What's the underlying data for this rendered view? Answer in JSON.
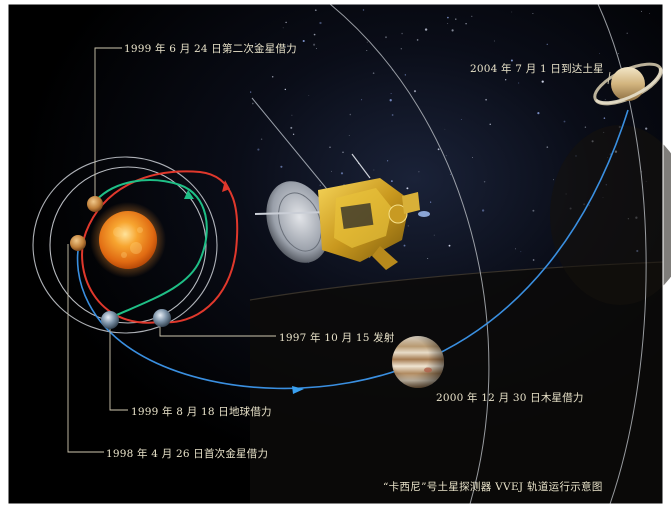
{
  "labels": {
    "venus_flyby_2": "1999 年 6 月 24 日第二次金星借力",
    "saturn_arrival": "2004 年 7 月 1 日到达土星",
    "launch": "1997 年 10 月 15 发射",
    "jupiter_flyby": "2000 年 12  月 30 日木星借力",
    "earth_flyby": "1999 年 8 月 18 日地球借力",
    "venus_flyby_1": "1998 年 4 月 26 日首次金星借力"
  },
  "caption": "“卡西尼”号土星探测器 VVEJ 轨道运行示意图",
  "colors": {
    "background": "#000000",
    "frame": "#ffffff",
    "label_text": "#e8e2c9",
    "trajectory_red": "#e0382c",
    "trajectory_green": "#1fbf86",
    "trajectory_blue": "#3a8fe0",
    "orbit_line": "#c8ccd2",
    "sun": "#f08a1a",
    "spacecraft_gold": "#d8a826"
  },
  "icons": [
    "sun-icon",
    "venus-icon",
    "earth-icon",
    "jupiter-icon",
    "saturn-icon",
    "cassini-spacecraft-icon"
  ]
}
